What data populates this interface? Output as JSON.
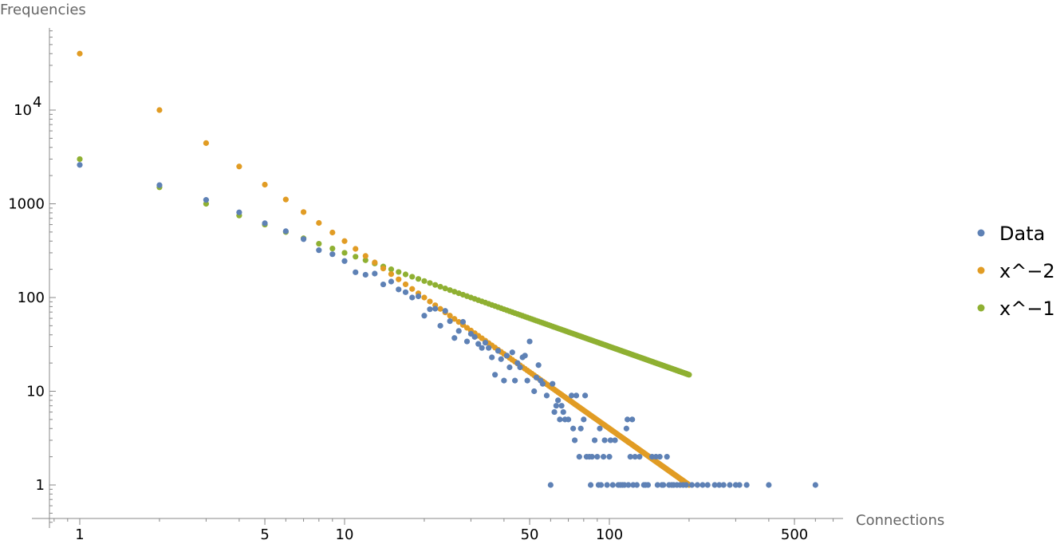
{
  "chart_data": {
    "type": "scatter",
    "scale": "log-log",
    "xlabel": "Connections",
    "ylabel": "Frequencies",
    "xlim": [
      0.77,
      760
    ],
    "ylim": [
      0.44,
      75000
    ],
    "x_ticks": [
      {
        "v": 1,
        "label": "1"
      },
      {
        "v": 5,
        "label": "5"
      },
      {
        "v": 10,
        "label": "10"
      },
      {
        "v": 50,
        "label": "50"
      },
      {
        "v": 100,
        "label": "100"
      },
      {
        "v": 500,
        "label": "500"
      }
    ],
    "y_ticks": [
      {
        "v": 1,
        "label": "1"
      },
      {
        "v": 10,
        "label": "10"
      },
      {
        "v": 100,
        "label": "100"
      },
      {
        "v": 1000,
        "label": "1000"
      },
      {
        "v": 10000,
        "label": "10",
        "sup": "4"
      }
    ],
    "legend_position": "right",
    "series": [
      {
        "name": "Data",
        "color": "#5E81B5",
        "points": [
          [
            1,
            2600
          ],
          [
            2,
            1580
          ],
          [
            3,
            1100
          ],
          [
            4,
            810
          ],
          [
            5,
            620
          ],
          [
            6,
            510
          ],
          [
            7,
            420
          ],
          [
            8,
            320
          ],
          [
            9,
            290
          ],
          [
            10,
            245
          ],
          [
            11,
            186
          ],
          [
            12,
            175
          ],
          [
            13,
            180
          ],
          [
            14,
            138
          ],
          [
            15,
            148
          ],
          [
            16,
            122
          ],
          [
            17,
            114
          ],
          [
            18,
            100
          ],
          [
            19,
            103
          ],
          [
            20,
            64
          ],
          [
            21,
            75
          ],
          [
            22,
            76
          ],
          [
            23,
            50
          ],
          [
            24,
            72
          ],
          [
            25,
            56
          ],
          [
            26,
            37
          ],
          [
            27,
            44
          ],
          [
            28,
            55
          ],
          [
            29,
            34
          ],
          [
            30,
            41
          ],
          [
            31,
            38
          ],
          [
            32,
            32
          ],
          [
            33,
            29
          ],
          [
            34,
            33
          ],
          [
            35,
            29
          ],
          [
            36,
            23
          ],
          [
            37,
            15
          ],
          [
            38,
            27
          ],
          [
            39,
            22
          ],
          [
            40,
            13
          ],
          [
            41,
            24
          ],
          [
            42,
            18
          ],
          [
            43,
            26
          ],
          [
            44,
            13
          ],
          [
            45,
            20
          ],
          [
            46,
            18
          ],
          [
            47,
            23
          ],
          [
            48,
            24
          ],
          [
            49,
            13
          ],
          [
            50,
            34
          ],
          [
            52,
            10
          ],
          [
            53,
            14
          ],
          [
            54,
            19
          ],
          [
            55,
            13
          ],
          [
            56,
            12
          ],
          [
            58,
            9
          ],
          [
            60,
            1
          ],
          [
            61,
            12
          ],
          [
            62,
            6
          ],
          [
            63,
            7
          ],
          [
            64,
            8
          ],
          [
            65,
            5
          ],
          [
            66,
            7
          ],
          [
            67,
            6
          ],
          [
            68,
            5
          ],
          [
            70,
            5
          ],
          [
            72,
            9
          ],
          [
            73,
            4
          ],
          [
            74,
            3
          ],
          [
            75,
            9
          ],
          [
            77,
            2
          ],
          [
            78,
            4
          ],
          [
            80,
            5
          ],
          [
            81,
            9
          ],
          [
            82,
            2
          ],
          [
            84,
            2
          ],
          [
            85,
            1
          ],
          [
            86,
            2
          ],
          [
            88,
            3
          ],
          [
            90,
            2
          ],
          [
            91,
            1
          ],
          [
            92,
            4
          ],
          [
            93,
            1
          ],
          [
            95,
            2
          ],
          [
            96,
            3
          ],
          [
            98,
            1
          ],
          [
            100,
            2
          ],
          [
            101,
            3
          ],
          [
            103,
            1
          ],
          [
            105,
            3
          ],
          [
            108,
            1
          ],
          [
            110,
            1
          ],
          [
            112,
            1
          ],
          [
            114,
            1
          ],
          [
            116,
            4
          ],
          [
            117,
            5
          ],
          [
            118,
            1
          ],
          [
            120,
            2
          ],
          [
            122,
            5
          ],
          [
            123,
            1
          ],
          [
            125,
            2
          ],
          [
            127,
            1
          ],
          [
            130,
            2
          ],
          [
            135,
            1
          ],
          [
            137,
            1
          ],
          [
            140,
            1
          ],
          [
            145,
            2
          ],
          [
            150,
            2
          ],
          [
            152,
            1
          ],
          [
            155,
            2
          ],
          [
            158,
            1
          ],
          [
            160,
            1
          ],
          [
            165,
            2
          ],
          [
            168,
            1
          ],
          [
            172,
            1
          ],
          [
            175,
            1
          ],
          [
            180,
            1
          ],
          [
            185,
            1
          ],
          [
            190,
            1
          ],
          [
            195,
            1
          ],
          [
            205,
            1
          ],
          [
            215,
            1
          ],
          [
            225,
            1
          ],
          [
            235,
            1
          ],
          [
            250,
            1
          ],
          [
            260,
            1
          ],
          [
            270,
            1
          ],
          [
            285,
            1
          ],
          [
            300,
            1
          ],
          [
            310,
            1
          ],
          [
            330,
            1
          ],
          [
            400,
            1
          ],
          [
            600,
            1
          ]
        ]
      },
      {
        "name": "x^−2",
        "color": "#E19C24",
        "coefficient": 40000,
        "exponent": -2,
        "x_from": 1,
        "x_to": 200
      },
      {
        "name": "x^−1",
        "color": "#8FB032",
        "coefficient": 3000,
        "exponent": -1,
        "x_from": 1,
        "x_to": 200
      }
    ]
  }
}
